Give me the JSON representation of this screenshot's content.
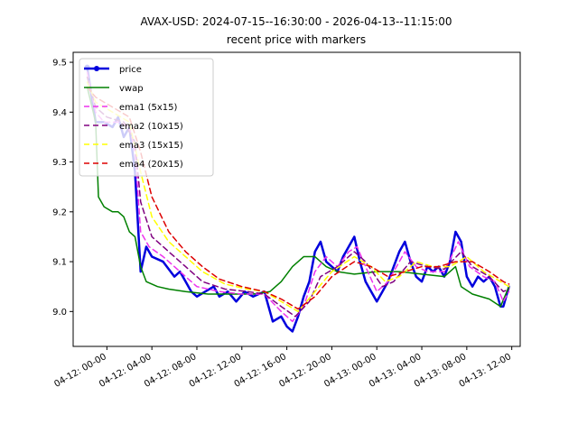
{
  "chart_data": {
    "type": "line",
    "title": "AVAX-USD: 2024-07-15--16:30:00 - 2026-04-13--11:15:00",
    "subtitle": "recent price with markers",
    "xlabel": "",
    "ylabel": "",
    "x_domain": [
      "04-11 21:00",
      "04-13 12:45"
    ],
    "ylim": [
      8.93,
      9.52
    ],
    "grid": false,
    "legend_position": "upper-left",
    "x_ticks": [
      "04-12: 00-00",
      "04-12: 04-00",
      "04-12: 08-00",
      "04-12: 12-00",
      "04-12: 16-00",
      "04-12: 20-00",
      "04-13: 00-00",
      "04-13: 04-00",
      "04-13: 08-00",
      "04-13: 12-00"
    ],
    "y_ticks": [
      "9.0",
      "9.1",
      "9.2",
      "9.3",
      "9.4",
      "9.5"
    ],
    "series": [
      {
        "name": "price",
        "color": "#0000dd",
        "width": 2.5,
        "dash": "",
        "points": [
          [
            "04-11 22:15",
            9.49
          ],
          [
            "04-11 23:00",
            9.38
          ],
          [
            "04-11 23:45",
            9.38
          ],
          [
            "04-12 00:30",
            9.37
          ],
          [
            "04-12 01:00",
            9.39
          ],
          [
            "04-12 01:30",
            9.35
          ],
          [
            "04-12 02:00",
            9.37
          ],
          [
            "04-12 02:30",
            9.28
          ],
          [
            "04-12 03:00",
            9.08
          ],
          [
            "04-12 03:30",
            9.13
          ],
          [
            "04-12 04:00",
            9.11
          ],
          [
            "04-12 05:00",
            9.1
          ],
          [
            "04-12 06:00",
            9.07
          ],
          [
            "04-12 06:30",
            9.08
          ],
          [
            "04-12 07:00",
            9.06
          ],
          [
            "04-12 07:30",
            9.04
          ],
          [
            "04-12 08:00",
            9.03
          ],
          [
            "04-12 08:45",
            9.04
          ],
          [
            "04-12 09:30",
            9.05
          ],
          [
            "04-12 10:00",
            9.03
          ],
          [
            "04-12 10:45",
            9.04
          ],
          [
            "04-12 11:30",
            9.02
          ],
          [
            "04-12 12:15",
            9.04
          ],
          [
            "04-12 13:00",
            9.03
          ],
          [
            "04-12 14:00",
            9.04
          ],
          [
            "04-12 14:45",
            8.98
          ],
          [
            "04-12 15:30",
            8.99
          ],
          [
            "04-12 16:00",
            8.97
          ],
          [
            "04-12 16:30",
            8.96
          ],
          [
            "04-12 17:00",
            8.99
          ],
          [
            "04-12 17:30",
            9.03
          ],
          [
            "04-12 18:00",
            9.06
          ],
          [
            "04-12 18:30",
            9.12
          ],
          [
            "04-12 19:00",
            9.14
          ],
          [
            "04-12 19:30",
            9.1
          ],
          [
            "04-12 20:00",
            9.09
          ],
          [
            "04-12 20:30",
            9.08
          ],
          [
            "04-12 21:00",
            9.11
          ],
          [
            "04-12 21:30",
            9.13
          ],
          [
            "04-12 22:00",
            9.15
          ],
          [
            "04-12 22:30",
            9.1
          ],
          [
            "04-12 23:00",
            9.06
          ],
          [
            "04-12 23:30",
            9.04
          ],
          [
            "04-13 00:00",
            9.02
          ],
          [
            "04-13 00:30",
            9.04
          ],
          [
            "04-13 01:00",
            9.06
          ],
          [
            "04-13 01:30",
            9.09
          ],
          [
            "04-13 02:00",
            9.12
          ],
          [
            "04-13 02:30",
            9.14
          ],
          [
            "04-13 03:00",
            9.1
          ],
          [
            "04-13 03:30",
            9.07
          ],
          [
            "04-13 04:00",
            9.06
          ],
          [
            "04-13 04:30",
            9.09
          ],
          [
            "04-13 05:00",
            9.08
          ],
          [
            "04-13 05:30",
            9.09
          ],
          [
            "04-13 06:00",
            9.07
          ],
          [
            "04-13 06:30",
            9.1
          ],
          [
            "04-13 07:00",
            9.16
          ],
          [
            "04-13 07:30",
            9.14
          ],
          [
            "04-13 08:00",
            9.07
          ],
          [
            "04-13 08:30",
            9.05
          ],
          [
            "04-13 09:00",
            9.07
          ],
          [
            "04-13 09:30",
            9.06
          ],
          [
            "04-13 10:00",
            9.07
          ],
          [
            "04-13 10:30",
            9.05
          ],
          [
            "04-13 11:00",
            9.01
          ],
          [
            "04-13 11:15",
            9.01
          ],
          [
            "04-13 11:45",
            9.05
          ]
        ]
      },
      {
        "name": "vwap",
        "color": "#008000",
        "width": 1.5,
        "dash": "",
        "points": [
          [
            "04-11 22:15",
            9.45
          ],
          [
            "04-11 23:00",
            9.38
          ],
          [
            "04-11 23:15",
            9.23
          ],
          [
            "04-11 23:45",
            9.21
          ],
          [
            "04-12 00:30",
            9.2
          ],
          [
            "04-12 01:00",
            9.2
          ],
          [
            "04-12 01:30",
            9.19
          ],
          [
            "04-12 02:00",
            9.16
          ],
          [
            "04-12 02:30",
            9.15
          ],
          [
            "04-12 03:00",
            9.09
          ],
          [
            "04-12 03:30",
            9.06
          ],
          [
            "04-12 04:30",
            9.05
          ],
          [
            "04-12 05:30",
            9.045
          ],
          [
            "04-12 07:00",
            9.04
          ],
          [
            "04-12 09:00",
            9.035
          ],
          [
            "04-12 11:00",
            9.035
          ],
          [
            "04-12 13:00",
            9.035
          ],
          [
            "04-12 14:30",
            9.04
          ],
          [
            "04-12 15:30",
            9.06
          ],
          [
            "04-12 16:30",
            9.09
          ],
          [
            "04-12 17:30",
            9.11
          ],
          [
            "04-12 18:30",
            9.11
          ],
          [
            "04-12 19:30",
            9.09
          ],
          [
            "04-12 20:30",
            9.08
          ],
          [
            "04-12 22:00",
            9.075
          ],
          [
            "04-13 00:00",
            9.08
          ],
          [
            "04-13 02:00",
            9.08
          ],
          [
            "04-13 04:00",
            9.075
          ],
          [
            "04-13 06:00",
            9.07
          ],
          [
            "04-13 07:00",
            9.09
          ],
          [
            "04-13 07:30",
            9.05
          ],
          [
            "04-13 08:30",
            9.035
          ],
          [
            "04-13 10:00",
            9.025
          ],
          [
            "04-13 11:00",
            9.01
          ],
          [
            "04-13 11:45",
            9.05
          ]
        ]
      },
      {
        "name": "ema1 (5x15)",
        "color": "#ee33ee",
        "width": 1.5,
        "dash": "6,4",
        "points": [
          [
            "04-11 22:15",
            9.48
          ],
          [
            "04-11 23:00",
            9.4
          ],
          [
            "04-11 23:45",
            9.38
          ],
          [
            "04-12 01:00",
            9.38
          ],
          [
            "04-12 02:00",
            9.37
          ],
          [
            "04-12 02:30",
            9.32
          ],
          [
            "04-12 03:00",
            9.16
          ],
          [
            "04-12 03:45",
            9.13
          ],
          [
            "04-12 05:00",
            9.11
          ],
          [
            "04-12 06:30",
            9.08
          ],
          [
            "04-12 08:00",
            9.05
          ],
          [
            "04-12 10:00",
            9.04
          ],
          [
            "04-12 12:00",
            9.035
          ],
          [
            "04-12 14:00",
            9.035
          ],
          [
            "04-12 15:30",
            9.0
          ],
          [
            "04-12 16:30",
            8.98
          ],
          [
            "04-12 17:30",
            9.01
          ],
          [
            "04-12 18:30",
            9.08
          ],
          [
            "04-12 19:30",
            9.11
          ],
          [
            "04-12 20:30",
            9.09
          ],
          [
            "04-12 21:30",
            9.12
          ],
          [
            "04-12 22:15",
            9.13
          ],
          [
            "04-12 23:00",
            9.09
          ],
          [
            "04-13 00:00",
            9.04
          ],
          [
            "04-13 01:00",
            9.06
          ],
          [
            "04-13 02:30",
            9.12
          ],
          [
            "04-13 03:30",
            9.09
          ],
          [
            "04-13 04:30",
            9.08
          ],
          [
            "04-13 06:00",
            9.08
          ],
          [
            "04-13 07:15",
            9.14
          ],
          [
            "04-13 08:15",
            9.09
          ],
          [
            "04-13 09:30",
            9.07
          ],
          [
            "04-13 10:30",
            9.06
          ],
          [
            "04-13 11:15",
            9.02
          ],
          [
            "04-13 11:45",
            9.04
          ]
        ]
      },
      {
        "name": "ema2 (10x15)",
        "color": "#800080",
        "width": 1.5,
        "dash": "6,4",
        "points": [
          [
            "04-11 22:15",
            9.47
          ],
          [
            "04-11 23:00",
            9.41
          ],
          [
            "04-12 00:00",
            9.39
          ],
          [
            "04-12 01:30",
            9.38
          ],
          [
            "04-12 02:30",
            9.34
          ],
          [
            "04-12 03:00",
            9.22
          ],
          [
            "04-12 04:00",
            9.15
          ],
          [
            "04-12 05:30",
            9.12
          ],
          [
            "04-12 07:00",
            9.09
          ],
          [
            "04-12 08:30",
            9.06
          ],
          [
            "04-12 10:30",
            9.045
          ],
          [
            "04-12 12:30",
            9.04
          ],
          [
            "04-12 14:00",
            9.035
          ],
          [
            "04-12 15:30",
            9.01
          ],
          [
            "04-12 16:45",
            8.99
          ],
          [
            "04-12 18:00",
            9.02
          ],
          [
            "04-12 19:00",
            9.07
          ],
          [
            "04-12 20:30",
            9.09
          ],
          [
            "04-12 22:00",
            9.12
          ],
          [
            "04-12 23:00",
            9.1
          ],
          [
            "04-13 00:30",
            9.05
          ],
          [
            "04-13 01:30",
            9.06
          ],
          [
            "04-13 03:00",
            9.1
          ],
          [
            "04-13 04:30",
            9.09
          ],
          [
            "04-13 06:00",
            9.085
          ],
          [
            "04-13 07:30",
            9.12
          ],
          [
            "04-13 08:30",
            9.09
          ],
          [
            "04-13 10:00",
            9.07
          ],
          [
            "04-13 11:15",
            9.04
          ],
          [
            "04-13 11:45",
            9.045
          ]
        ]
      },
      {
        "name": "ema3 (15x15)",
        "color": "#ffff00",
        "width": 1.5,
        "dash": "6,4",
        "points": [
          [
            "04-11 22:15",
            9.46
          ],
          [
            "04-11 23:00",
            9.42
          ],
          [
            "04-12 00:30",
            9.4
          ],
          [
            "04-12 02:00",
            9.38
          ],
          [
            "04-12 03:00",
            9.28
          ],
          [
            "04-12 04:00",
            9.19
          ],
          [
            "04-12 05:30",
            9.14
          ],
          [
            "04-12 07:00",
            9.11
          ],
          [
            "04-12 08:30",
            9.08
          ],
          [
            "04-12 10:30",
            9.055
          ],
          [
            "04-12 12:30",
            9.045
          ],
          [
            "04-12 14:00",
            9.04
          ],
          [
            "04-12 15:30",
            9.02
          ],
          [
            "04-12 17:00",
            9.0
          ],
          [
            "04-12 18:30",
            9.04
          ],
          [
            "04-12 20:00",
            9.08
          ],
          [
            "04-12 22:00",
            9.11
          ],
          [
            "04-12 23:30",
            9.09
          ],
          [
            "04-13 00:45",
            9.06
          ],
          [
            "04-13 02:00",
            9.07
          ],
          [
            "04-13 03:30",
            9.1
          ],
          [
            "04-13 05:00",
            9.09
          ],
          [
            "04-13 06:30",
            9.09
          ],
          [
            "04-13 08:00",
            9.11
          ],
          [
            "04-13 09:30",
            9.08
          ],
          [
            "04-13 11:00",
            9.06
          ],
          [
            "04-13 11:45",
            9.05
          ]
        ]
      },
      {
        "name": "ema4 (20x15)",
        "color": "#dd0000",
        "width": 1.5,
        "dash": "6,4",
        "points": [
          [
            "04-11 22:15",
            9.45
          ],
          [
            "04-11 23:00",
            9.43
          ],
          [
            "04-12 00:30",
            9.41
          ],
          [
            "04-12 02:00",
            9.39
          ],
          [
            "04-12 03:00",
            9.32
          ],
          [
            "04-12 04:00",
            9.23
          ],
          [
            "04-12 05:30",
            9.16
          ],
          [
            "04-12 07:00",
            9.12
          ],
          [
            "04-12 08:30",
            9.09
          ],
          [
            "04-12 10:00",
            9.065
          ],
          [
            "04-12 12:00",
            9.05
          ],
          [
            "04-12 14:00",
            9.04
          ],
          [
            "04-12 15:30",
            9.025
          ],
          [
            "04-12 17:00",
            9.005
          ],
          [
            "04-12 18:30",
            9.03
          ],
          [
            "04-12 20:00",
            9.07
          ],
          [
            "04-12 22:00",
            9.1
          ],
          [
            "04-12 23:30",
            9.09
          ],
          [
            "04-13 01:00",
            9.07
          ],
          [
            "04-13 02:30",
            9.08
          ],
          [
            "04-13 04:00",
            9.09
          ],
          [
            "04-13 05:30",
            9.09
          ],
          [
            "04-13 07:00",
            9.1
          ],
          [
            "04-13 08:30",
            9.1
          ],
          [
            "04-13 10:00",
            9.08
          ],
          [
            "04-13 11:15",
            9.06
          ],
          [
            "04-13 11:45",
            9.055
          ]
        ]
      }
    ]
  }
}
